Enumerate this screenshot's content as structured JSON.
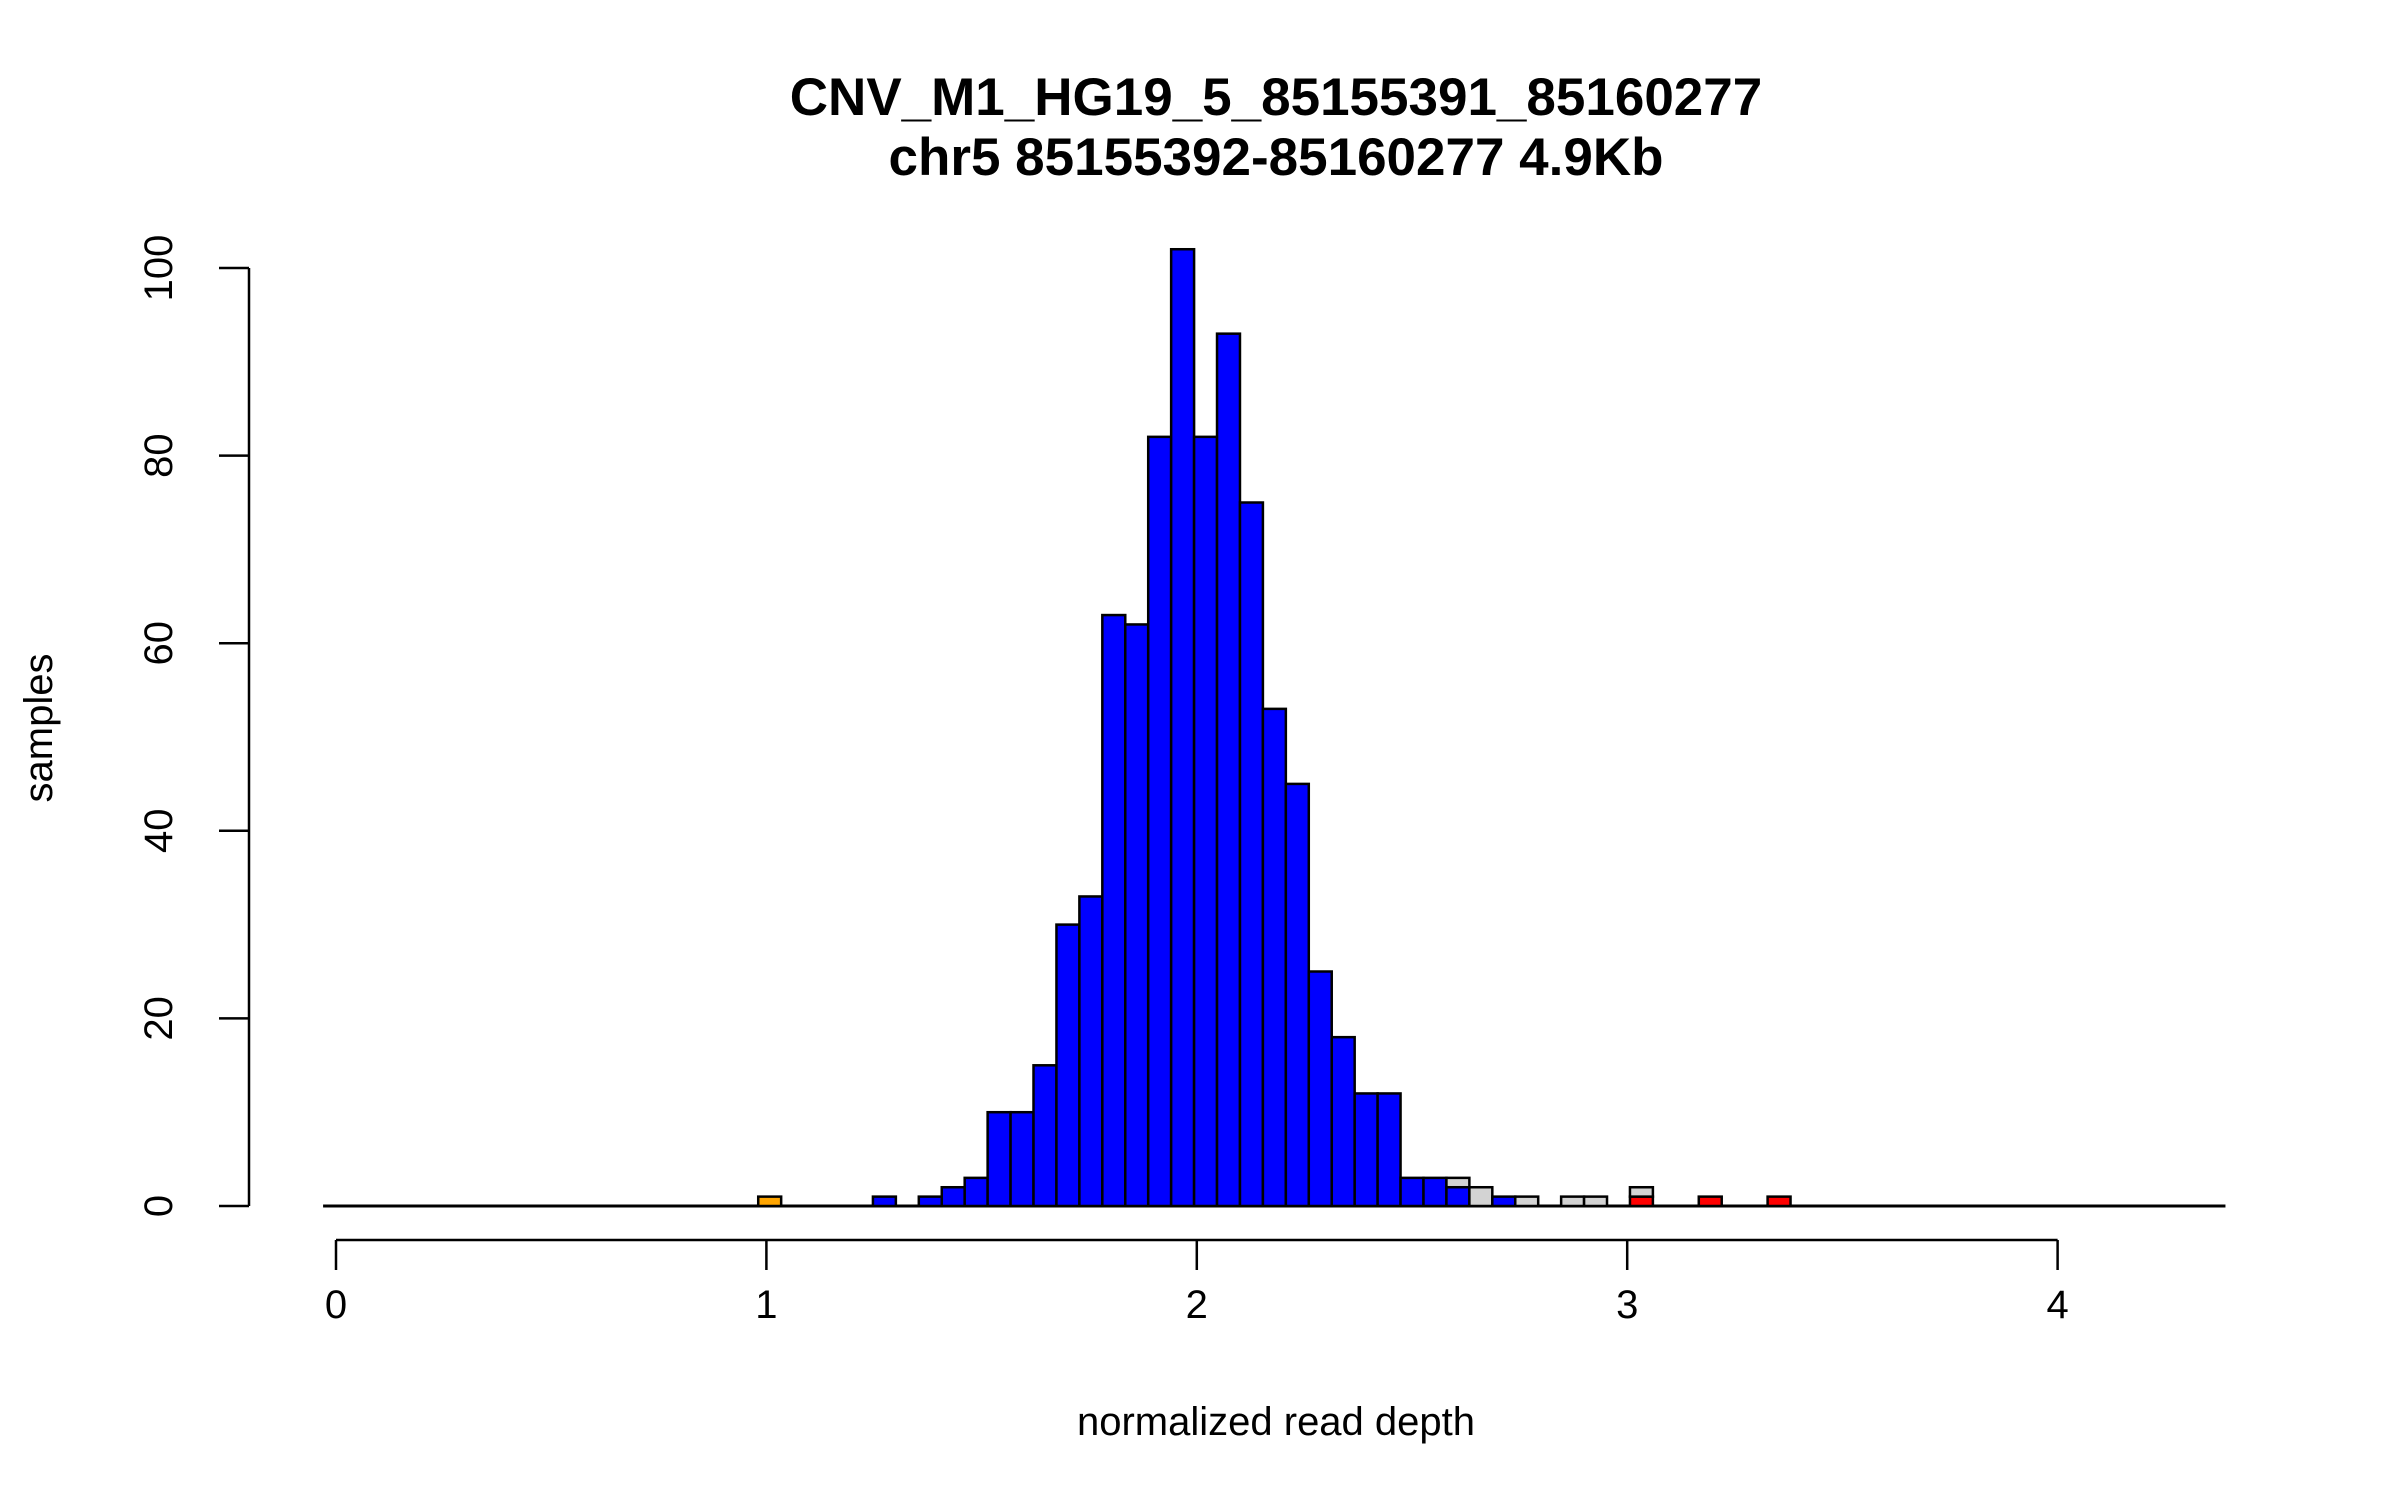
{
  "chart_data": {
    "type": "bar",
    "subtype": "stacked histogram",
    "title": "CNV_M1_HG19_5_85155391_85160277",
    "subtitle": "chr5 85155392-85160277 4.9Kb",
    "xlabel": "normalized read depth",
    "ylabel": "samples",
    "xlim": [
      -0.03,
      4.39
    ],
    "ylim": [
      0,
      102
    ],
    "x_ticks": [
      "0",
      "1",
      "2",
      "3",
      "4"
    ],
    "y_ticks": [
      "0",
      "20",
      "40",
      "60",
      "80",
      "100"
    ],
    "bin_start": 0.981,
    "bin_width": 0.0533,
    "colors": {
      "blue": "#0000ff",
      "grey": "#d3d3d3",
      "red": "#ff0000",
      "orange": "#ffa500"
    },
    "bins": [
      {
        "k": 0,
        "segments": [
          {
            "color": "orange",
            "count": 1
          }
        ]
      },
      {
        "k": 5,
        "segments": [
          {
            "color": "blue",
            "count": 1
          }
        ]
      },
      {
        "k": 7,
        "segments": [
          {
            "color": "blue",
            "count": 1
          }
        ]
      },
      {
        "k": 8,
        "segments": [
          {
            "color": "blue",
            "count": 2
          }
        ]
      },
      {
        "k": 9,
        "segments": [
          {
            "color": "blue",
            "count": 3
          }
        ]
      },
      {
        "k": 10,
        "segments": [
          {
            "color": "blue",
            "count": 10
          }
        ]
      },
      {
        "k": 11,
        "segments": [
          {
            "color": "blue",
            "count": 10
          }
        ]
      },
      {
        "k": 12,
        "segments": [
          {
            "color": "blue",
            "count": 15
          }
        ]
      },
      {
        "k": 13,
        "segments": [
          {
            "color": "blue",
            "count": 30
          }
        ]
      },
      {
        "k": 14,
        "segments": [
          {
            "color": "blue",
            "count": 33
          }
        ]
      },
      {
        "k": 15,
        "segments": [
          {
            "color": "blue",
            "count": 63
          }
        ]
      },
      {
        "k": 16,
        "segments": [
          {
            "color": "blue",
            "count": 62
          }
        ]
      },
      {
        "k": 17,
        "segments": [
          {
            "color": "blue",
            "count": 82
          }
        ]
      },
      {
        "k": 18,
        "segments": [
          {
            "color": "blue",
            "count": 102
          }
        ]
      },
      {
        "k": 19,
        "segments": [
          {
            "color": "blue",
            "count": 82
          }
        ]
      },
      {
        "k": 20,
        "segments": [
          {
            "color": "blue",
            "count": 93
          }
        ]
      },
      {
        "k": 21,
        "segments": [
          {
            "color": "blue",
            "count": 75
          }
        ]
      },
      {
        "k": 22,
        "segments": [
          {
            "color": "blue",
            "count": 53
          }
        ]
      },
      {
        "k": 23,
        "segments": [
          {
            "color": "blue",
            "count": 45
          }
        ]
      },
      {
        "k": 24,
        "segments": [
          {
            "color": "blue",
            "count": 25
          }
        ]
      },
      {
        "k": 25,
        "segments": [
          {
            "color": "blue",
            "count": 18
          }
        ]
      },
      {
        "k": 26,
        "segments": [
          {
            "color": "blue",
            "count": 12
          }
        ]
      },
      {
        "k": 27,
        "segments": [
          {
            "color": "blue",
            "count": 12
          }
        ]
      },
      {
        "k": 28,
        "segments": [
          {
            "color": "blue",
            "count": 3
          }
        ]
      },
      {
        "k": 29,
        "segments": [
          {
            "color": "blue",
            "count": 3
          }
        ]
      },
      {
        "k": 30,
        "segments": [
          {
            "color": "blue",
            "count": 2
          },
          {
            "color": "grey",
            "count": 1
          }
        ]
      },
      {
        "k": 31,
        "segments": [
          {
            "color": "grey",
            "count": 2
          }
        ]
      },
      {
        "k": 32,
        "segments": [
          {
            "color": "blue",
            "count": 1
          }
        ]
      },
      {
        "k": 33,
        "segments": [
          {
            "color": "grey",
            "count": 1
          }
        ]
      },
      {
        "k": 35,
        "segments": [
          {
            "color": "grey",
            "count": 1
          }
        ]
      },
      {
        "k": 36,
        "segments": [
          {
            "color": "grey",
            "count": 1
          }
        ]
      },
      {
        "k": 38,
        "segments": [
          {
            "color": "red",
            "count": 1
          },
          {
            "color": "grey",
            "count": 1
          }
        ]
      },
      {
        "k": 41,
        "segments": [
          {
            "color": "red",
            "count": 1
          }
        ]
      },
      {
        "k": 44,
        "segments": [
          {
            "color": "red",
            "count": 1
          }
        ]
      }
    ]
  }
}
